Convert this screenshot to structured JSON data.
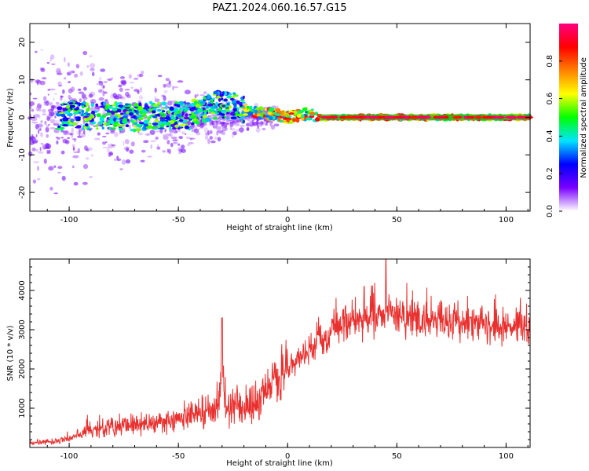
{
  "title": "PAZ1.2024.060.16.57.G15",
  "chart_data": [
    {
      "type": "heatmap",
      "title": "PAZ1.2024.060.16.57.G15",
      "xlabel": "Height of straight line (km)",
      "ylabel": "Frequency (Hz)",
      "xlim": [
        -118,
        111
      ],
      "ylim": [
        -25,
        25
      ],
      "xticks": [
        "-100",
        "-50",
        "0",
        "50",
        "100"
      ],
      "yticks": [
        "-20",
        "-10",
        "0",
        "10",
        "20"
      ],
      "colorbar": {
        "label": "Normalized spectral amplitude",
        "range": [
          0,
          1
        ],
        "ticks": [
          "0.0",
          "0.2",
          "0.4",
          "0.6",
          "0.8"
        ],
        "colors": [
          "#ffffff",
          "#7a00ff",
          "#0000ff",
          "#00e5ff",
          "#00ff00",
          "#ffff00",
          "#ff8000",
          "#ff0000",
          "#ff0080"
        ]
      },
      "ridge": {
        "x": [
          -105,
          -100,
          -90,
          -80,
          -70,
          -60,
          -50,
          -45,
          -40,
          -35,
          -30,
          -25,
          -20,
          -15,
          -10,
          -5,
          0,
          5,
          10,
          15,
          20,
          50,
          100,
          111
        ],
        "y": [
          0,
          1,
          0,
          0.5,
          0,
          0.5,
          0.5,
          0.5,
          2,
          3,
          3.5,
          3,
          2,
          1.5,
          1,
          0.5,
          0,
          0.5,
          1,
          0,
          0,
          0,
          0,
          0
        ]
      },
      "noise_band": {
        "x_start": -118,
        "x_end": -15,
        "freq_spread_hz": 24
      }
    },
    {
      "type": "line",
      "xlabel": "Height of straight line (km)",
      "ylabel": "SNR (10 * v/v)",
      "xlim": [
        -118,
        111
      ],
      "ylim": [
        0,
        4800
      ],
      "xticks": [
        "-100",
        "-50",
        "0",
        "50",
        "100"
      ],
      "yticks": [
        "1000",
        "2000",
        "3000",
        "4000"
      ],
      "color": "#e8312f",
      "envelope": {
        "x": [
          -118,
          -105,
          -100,
          -95,
          -90,
          -80,
          -70,
          -60,
          -50,
          -45,
          -40,
          -35,
          -31,
          -30,
          -28,
          -25,
          -20,
          -15,
          -10,
          -5,
          0,
          5,
          10,
          15,
          20,
          25,
          30,
          35,
          40,
          45,
          50,
          55,
          60,
          65,
          70,
          75,
          80,
          85,
          90,
          95,
          100,
          105,
          111
        ],
        "y": [
          120,
          150,
          250,
          350,
          450,
          500,
          550,
          600,
          700,
          800,
          850,
          900,
          1200,
          1700,
          900,
          1100,
          1000,
          1100,
          1400,
          1700,
          2000,
          2200,
          2500,
          2700,
          2900,
          3100,
          3200,
          3250,
          3300,
          3350,
          3350,
          3300,
          3250,
          3200,
          3200,
          3200,
          3150,
          3100,
          3100,
          3100,
          3100,
          3100,
          3100
        ]
      },
      "spikes": [
        {
          "x": -30,
          "y": 3300
        },
        {
          "x": 45,
          "y": 4800
        },
        {
          "x": 35,
          "y": 4100
        }
      ]
    }
  ]
}
